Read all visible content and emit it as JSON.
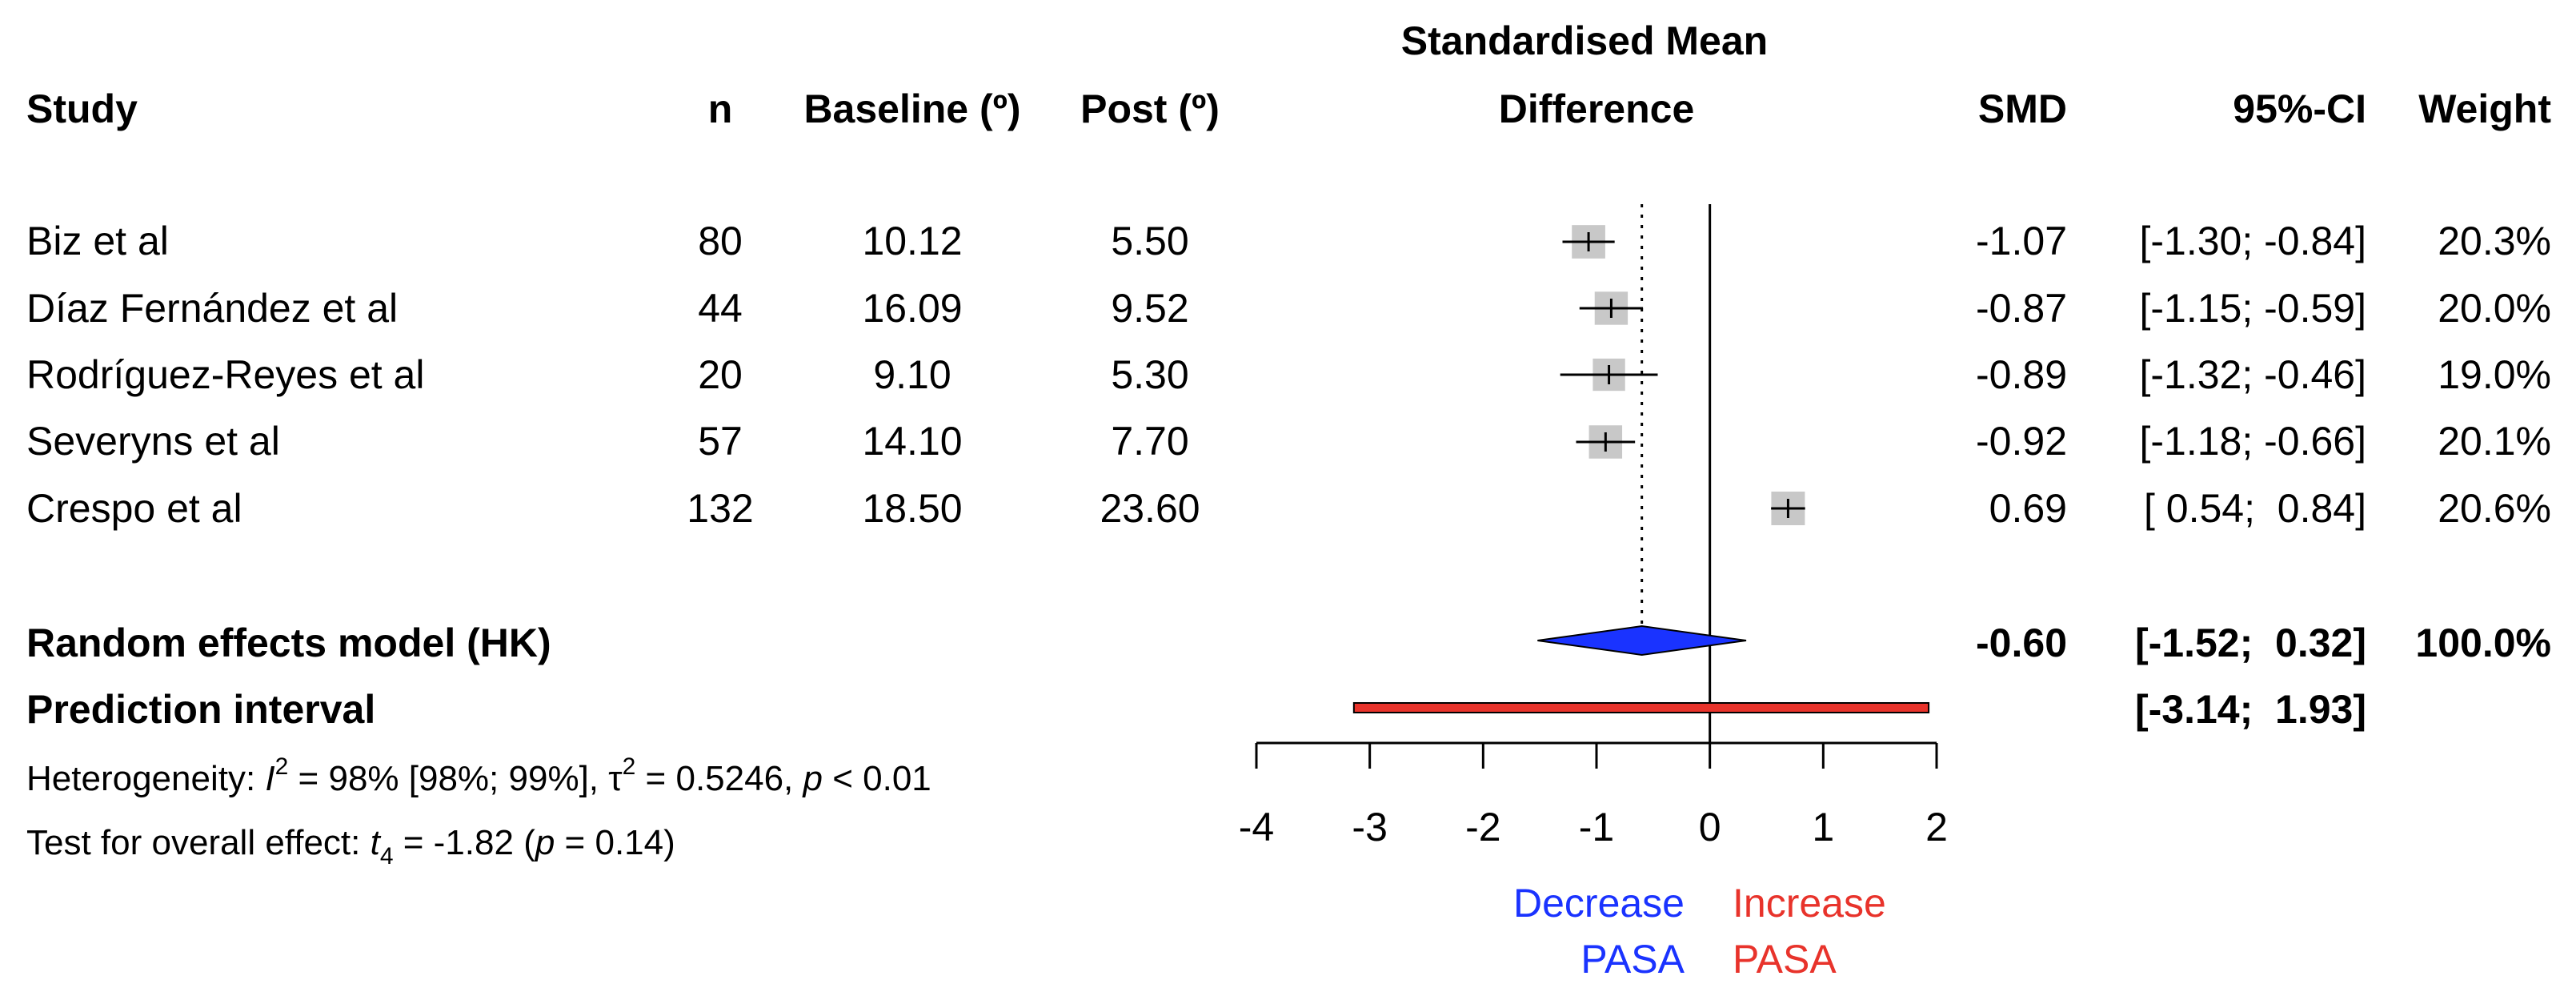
{
  "chart_data": {
    "type": "forest",
    "title": "Standardised Mean Difference",
    "title_lines": [
      "Standardised Mean",
      "Difference"
    ],
    "columns": {
      "study": "Study",
      "n": "n",
      "baseline": "Baseline (º)",
      "post": "Post (º)",
      "smd": "SMD",
      "ci": "95%-CI",
      "weight": "Weight"
    },
    "studies": [
      {
        "name": "Biz et al",
        "n": "80",
        "baseline": "10.12",
        "post": "5.50",
        "smd_text": "-1.07",
        "ci_text": "[-1.30; -0.84]",
        "weight_text": "20.3%",
        "smd": -1.07,
        "lower": -1.3,
        "upper": -0.84,
        "weight": 20.3
      },
      {
        "name": "Díaz Fernández et al",
        "n": "44",
        "baseline": "16.09",
        "post": "9.52",
        "smd_text": "-0.87",
        "ci_text": "[-1.15; -0.59]",
        "weight_text": "20.0%",
        "smd": -0.87,
        "lower": -1.15,
        "upper": -0.59,
        "weight": 20.0
      },
      {
        "name": "Rodríguez-Reyes et al",
        "n": "20",
        "baseline": "9.10",
        "post": "5.30",
        "smd_text": "-0.89",
        "ci_text": "[-1.32; -0.46]",
        "weight_text": "19.0%",
        "smd": -0.89,
        "lower": -1.32,
        "upper": -0.46,
        "weight": 19.0
      },
      {
        "name": "Severyns et al",
        "n": "57",
        "baseline": "14.10",
        "post": "7.70",
        "smd_text": "-0.92",
        "ci_text": "[-1.18; -0.66]",
        "weight_text": "20.1%",
        "smd": -0.92,
        "lower": -1.18,
        "upper": -0.66,
        "weight": 20.1
      },
      {
        "name": "Crespo et al",
        "n": "132",
        "baseline": "18.50",
        "post": "23.60",
        "smd_text": "0.69",
        "ci_text": "[ 0.54;  0.84]",
        "weight_text": "20.6%",
        "smd": 0.69,
        "lower": 0.54,
        "upper": 0.84,
        "weight": 20.6
      }
    ],
    "pooled": {
      "label": "Random effects model (HK)",
      "smd_text": "-0.60",
      "ci_text": "[-1.52;  0.32]",
      "weight_text": "100.0%",
      "smd": -0.6,
      "lower": -1.52,
      "upper": 0.32,
      "color": "#1a33ff"
    },
    "prediction": {
      "label": "Prediction interval",
      "ci_text": "[-3.14;  1.93]",
      "lower": -3.14,
      "upper": 1.93,
      "color": "#e8332b"
    },
    "heterogeneity": {
      "prefix": "Heterogeneity: ",
      "i2_symbol": "I",
      "i2_sup": "2",
      "i2_text": " = 98% [98%; 99%], ",
      "tau_symbol": "τ",
      "tau_sup": "2",
      "tau_text": " = 0.5246, ",
      "p_symbol": "p",
      "p_text": " < 0.01"
    },
    "overall_test": {
      "prefix": "Test for overall effect: ",
      "t_symbol": "t",
      "t_sub": "4",
      "t_text": " = -1.82 (",
      "p_symbol": "p",
      "p_text": " = 0.14)"
    },
    "x_axis": {
      "ticks": [
        -4,
        -3,
        -2,
        -1,
        0,
        1,
        2
      ],
      "tick_labels": [
        "-4",
        "-3",
        "-2",
        "-1",
        "0",
        "1",
        "2"
      ],
      "xlim": [
        -4,
        2
      ],
      "reference_line": 0,
      "pooled_reference_line": -0.6
    },
    "annotations": {
      "left": {
        "line1": "Decrease",
        "line2": "PASA",
        "color": "#1a33ff"
      },
      "right": {
        "line1": "Increase",
        "line2": "PASA",
        "color": "#e8332b"
      }
    },
    "colors": {
      "square": "#c8c8c8",
      "line": "#000000"
    }
  }
}
